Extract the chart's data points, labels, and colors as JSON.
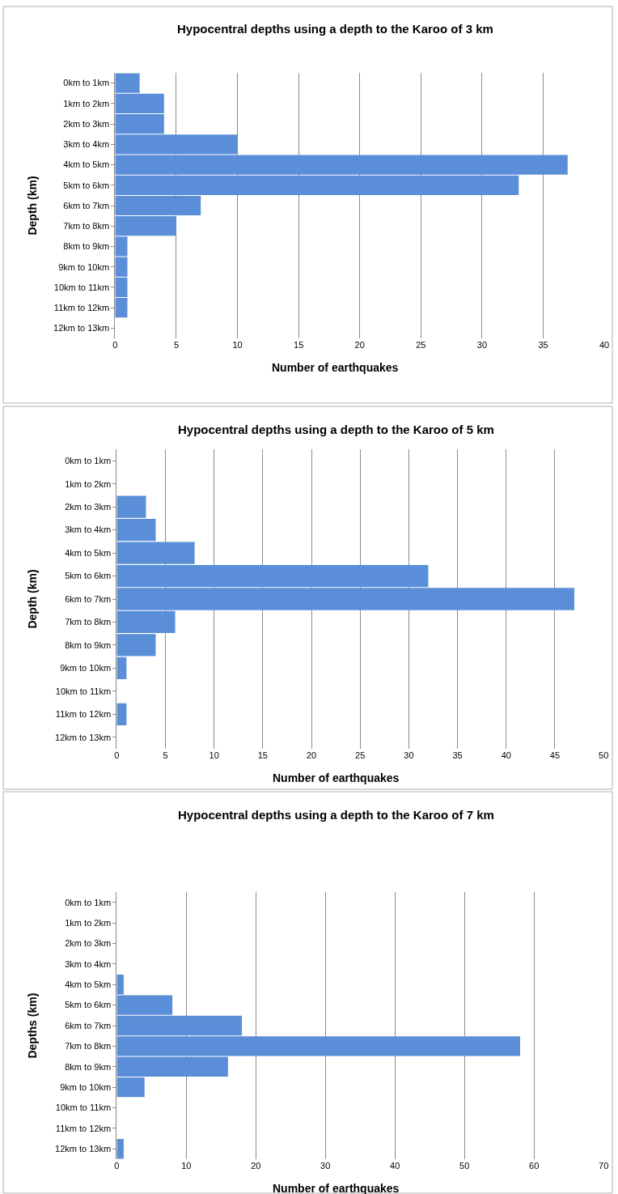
{
  "chart_data": [
    {
      "type": "bar",
      "orientation": "horizontal",
      "title": "Hypocentral depths using a depth to the Karoo of 3 km",
      "xlabel": "Number of earthquakes",
      "ylabel": "Depth (km)",
      "categories": [
        "0km to 1km",
        "1km to 2km",
        "2km to 3km",
        "3km to 4km",
        "4km to 5km",
        "5km to 6km",
        "6km to 7km",
        "7km to 8km",
        "8km to 9km",
        "9km to 10km",
        "10km to 11km",
        "11km to 12km",
        "12km to 13km"
      ],
      "values": [
        2,
        4,
        4,
        10,
        37,
        33,
        7,
        5,
        1,
        1,
        1,
        1,
        0
      ],
      "color": "#5b8ed8",
      "xlim": [
        0,
        40
      ],
      "xticks": [
        0,
        5,
        10,
        15,
        20,
        25,
        30,
        35,
        40
      ],
      "grid": "x"
    },
    {
      "type": "bar",
      "orientation": "horizontal",
      "title": "Hypocentral depths using a depth to the Karoo of 5 km",
      "xlabel": "Number of earthquakes",
      "ylabel": "Depth (km)",
      "categories": [
        "0km to 1km",
        "1km to 2km",
        "2km to 3km",
        "3km to 4km",
        "4km to 5km",
        "5km to 6km",
        "6km to 7km",
        "7km to 8km",
        "8km to 9km",
        "9km to 10km",
        "10km to 11km",
        "11km to 12km",
        "12km to 13km"
      ],
      "values": [
        0,
        0,
        3,
        4,
        8,
        32,
        47,
        6,
        4,
        1,
        0,
        1,
        0
      ],
      "color": "#5b8ed8",
      "xlim": [
        0,
        50
      ],
      "xticks": [
        0,
        5,
        10,
        15,
        20,
        25,
        30,
        35,
        40,
        45,
        50
      ],
      "grid": "x"
    },
    {
      "type": "bar",
      "orientation": "horizontal",
      "title": "Hypocentral depths using a depth to the Karoo of 7 km",
      "xlabel": "Number of earthquakes",
      "ylabel": "Depths (km)",
      "categories": [
        "0km to 1km",
        "1km to 2km",
        "2km to 3km",
        "3km to 4km",
        "4km to 5km",
        "5km to 6km",
        "6km to 7km",
        "7km to 8km",
        "8km to 9km",
        "9km to 10km",
        "10km to 11km",
        "11km to 12km",
        "12km to 13km"
      ],
      "values": [
        0,
        0,
        0,
        0,
        1,
        8,
        18,
        58,
        16,
        4,
        0,
        0,
        1
      ],
      "color": "#5b8ed8",
      "xlim": [
        0,
        70
      ],
      "xticks": [
        0,
        10,
        20,
        30,
        40,
        50,
        60,
        70
      ],
      "grid": "x"
    }
  ]
}
